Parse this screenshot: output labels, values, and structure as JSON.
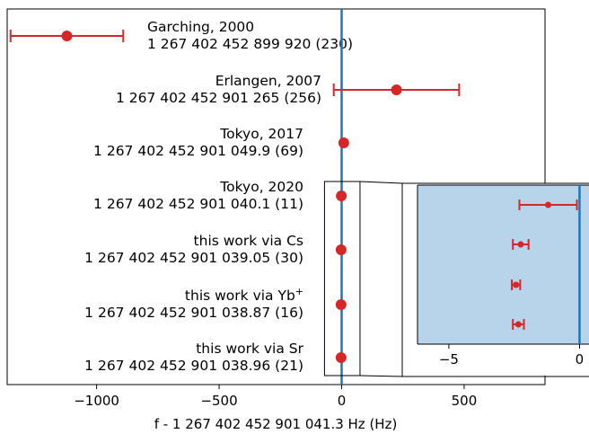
{
  "chart_data": [
    {
      "type": "scatter",
      "xlabel": "f - 1 267 402 452 901 041.3 Hz (Hz)",
      "xlim": [
        -1365,
        830
      ],
      "xticks": [
        -1000,
        -500,
        0,
        500
      ],
      "xtick_labels": [
        "−1000",
        "−500",
        "0",
        "500"
      ],
      "reference_line_x": 0,
      "series": [
        {
          "label_line1": "Garching, 2000",
          "label_line2": "1 267 402 452 899 920 (230)",
          "x": -1121.3,
          "err": 230
        },
        {
          "label_line1": "Erlangen, 2007",
          "label_line2": "1 267 402 452 901 265 (256)",
          "x": 223.7,
          "err": 256
        },
        {
          "label_line1": "Tokyo, 2017",
          "label_line2": "1 267 402 452 901 049.9 (69)",
          "x": 8.6,
          "err": 6.9
        },
        {
          "label_line1": "Tokyo, 2020",
          "label_line2": "1 267 402 452 901 040.1 (11)",
          "x": -1.2,
          "err": 1.1
        },
        {
          "label_line1": "this work via Cs",
          "label_line2": "1 267 402 452 901 039.05 (30)",
          "x": -2.25,
          "err": 0.3
        },
        {
          "label_line1": "this work via Yb",
          "label_line1_sup": "+",
          "label_line2": "1 267 402 452 901 038.87 (16)",
          "x": -2.43,
          "err": 0.16
        },
        {
          "label_line1": "this work via Sr",
          "label_line2": "1 267 402 452 901 038.96 (21)",
          "x": -2.34,
          "err": 0.21
        }
      ],
      "marker_color": "#d62728",
      "line_color": "#1f77b4"
    },
    {
      "type": "scatter",
      "inset": true,
      "xlim": [
        -6.2,
        0.5
      ],
      "xticks": [
        -5,
        0
      ],
      "xtick_labels": [
        "−5",
        "0"
      ],
      "zoom_x_range": [
        -70,
        75
      ],
      "background": "#b8d4ea",
      "points": [
        {
          "x": -1.2,
          "err": 1.1
        },
        {
          "x": -2.25,
          "err": 0.3
        },
        {
          "x": -2.43,
          "err": 0.16
        },
        {
          "x": -2.34,
          "err": 0.21
        }
      ]
    }
  ]
}
